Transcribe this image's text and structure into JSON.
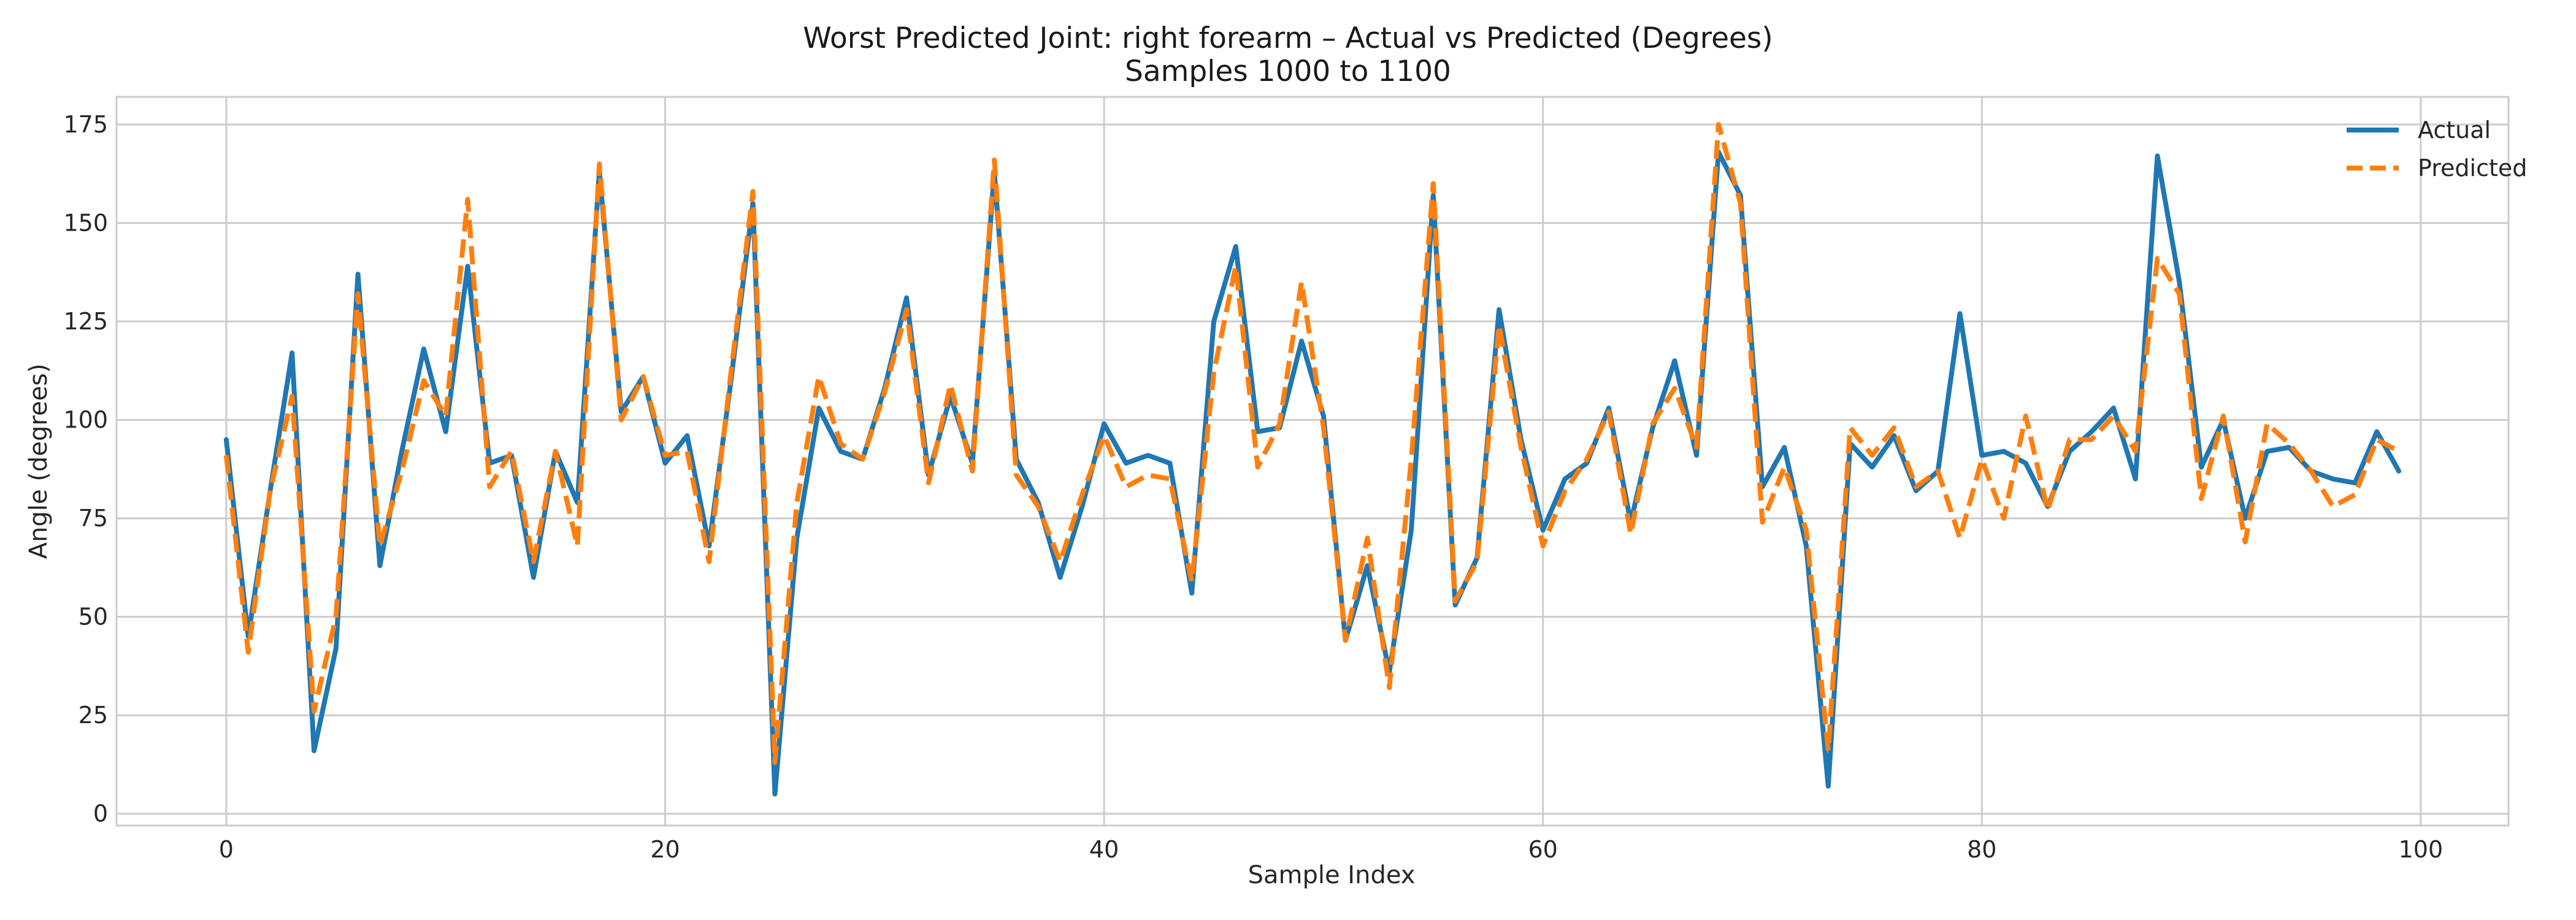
{
  "chart_data": {
    "type": "line",
    "title": "Worst Predicted Joint: right forearm – Actual vs Predicted (Degrees)",
    "subtitle": "Samples 1000 to 1100",
    "xlabel": "Sample Index",
    "ylabel": "Angle (degrees)",
    "xlim": [
      -5,
      104
    ],
    "ylim": [
      -3,
      182
    ],
    "xticks": [
      0,
      20,
      40,
      60,
      80,
      100
    ],
    "yticks": [
      0,
      25,
      50,
      75,
      100,
      125,
      150,
      175
    ],
    "grid": true,
    "legend_position": "top-right",
    "series": [
      {
        "name": "Actual",
        "color": "#1f77b4",
        "style": "solid",
        "values": [
          95,
          45,
          82,
          117,
          16,
          42,
          137,
          63,
          92,
          118,
          97,
          139,
          89,
          91,
          60,
          92,
          79,
          163,
          102,
          111,
          89,
          96,
          68,
          110,
          155,
          5,
          70,
          103,
          92,
          90,
          108,
          131,
          86,
          106,
          89,
          163,
          90,
          79,
          60,
          78,
          99,
          89,
          91,
          89,
          56,
          125,
          144,
          97,
          98,
          120,
          101,
          44,
          63,
          36,
          72,
          157,
          53,
          65,
          128,
          95,
          72,
          85,
          89,
          103,
          74,
          98,
          115,
          91,
          168,
          157,
          83,
          93,
          68,
          7,
          94,
          88,
          96,
          82,
          87,
          127,
          91,
          92,
          89,
          78,
          92,
          97,
          103,
          85,
          167,
          135,
          88,
          100,
          75,
          92,
          93,
          87,
          85,
          84,
          97,
          87
        ]
      },
      {
        "name": "Predicted",
        "color": "#ff7f0e",
        "style": "dashed",
        "values": [
          91,
          41,
          82,
          106,
          26,
          50,
          132,
          68,
          87,
          110,
          101,
          156,
          83,
          92,
          64,
          92,
          68,
          165,
          100,
          111,
          91,
          92,
          64,
          112,
          158,
          13,
          79,
          111,
          94,
          90,
          107,
          128,
          84,
          109,
          87,
          166,
          86,
          78,
          64,
          81,
          96,
          83,
          86,
          85,
          59,
          112,
          139,
          88,
          99,
          135,
          98,
          44,
          70,
          32,
          90,
          160,
          54,
          64,
          124,
          93,
          68,
          82,
          90,
          102,
          71,
          99,
          108,
          93,
          175,
          155,
          74,
          88,
          72,
          16,
          98,
          91,
          98,
          83,
          87,
          70,
          90,
          75,
          101,
          77,
          95,
          95,
          101,
          92,
          141,
          132,
          80,
          101,
          69,
          99,
          94,
          87,
          78,
          81,
          95,
          92
        ]
      }
    ]
  }
}
